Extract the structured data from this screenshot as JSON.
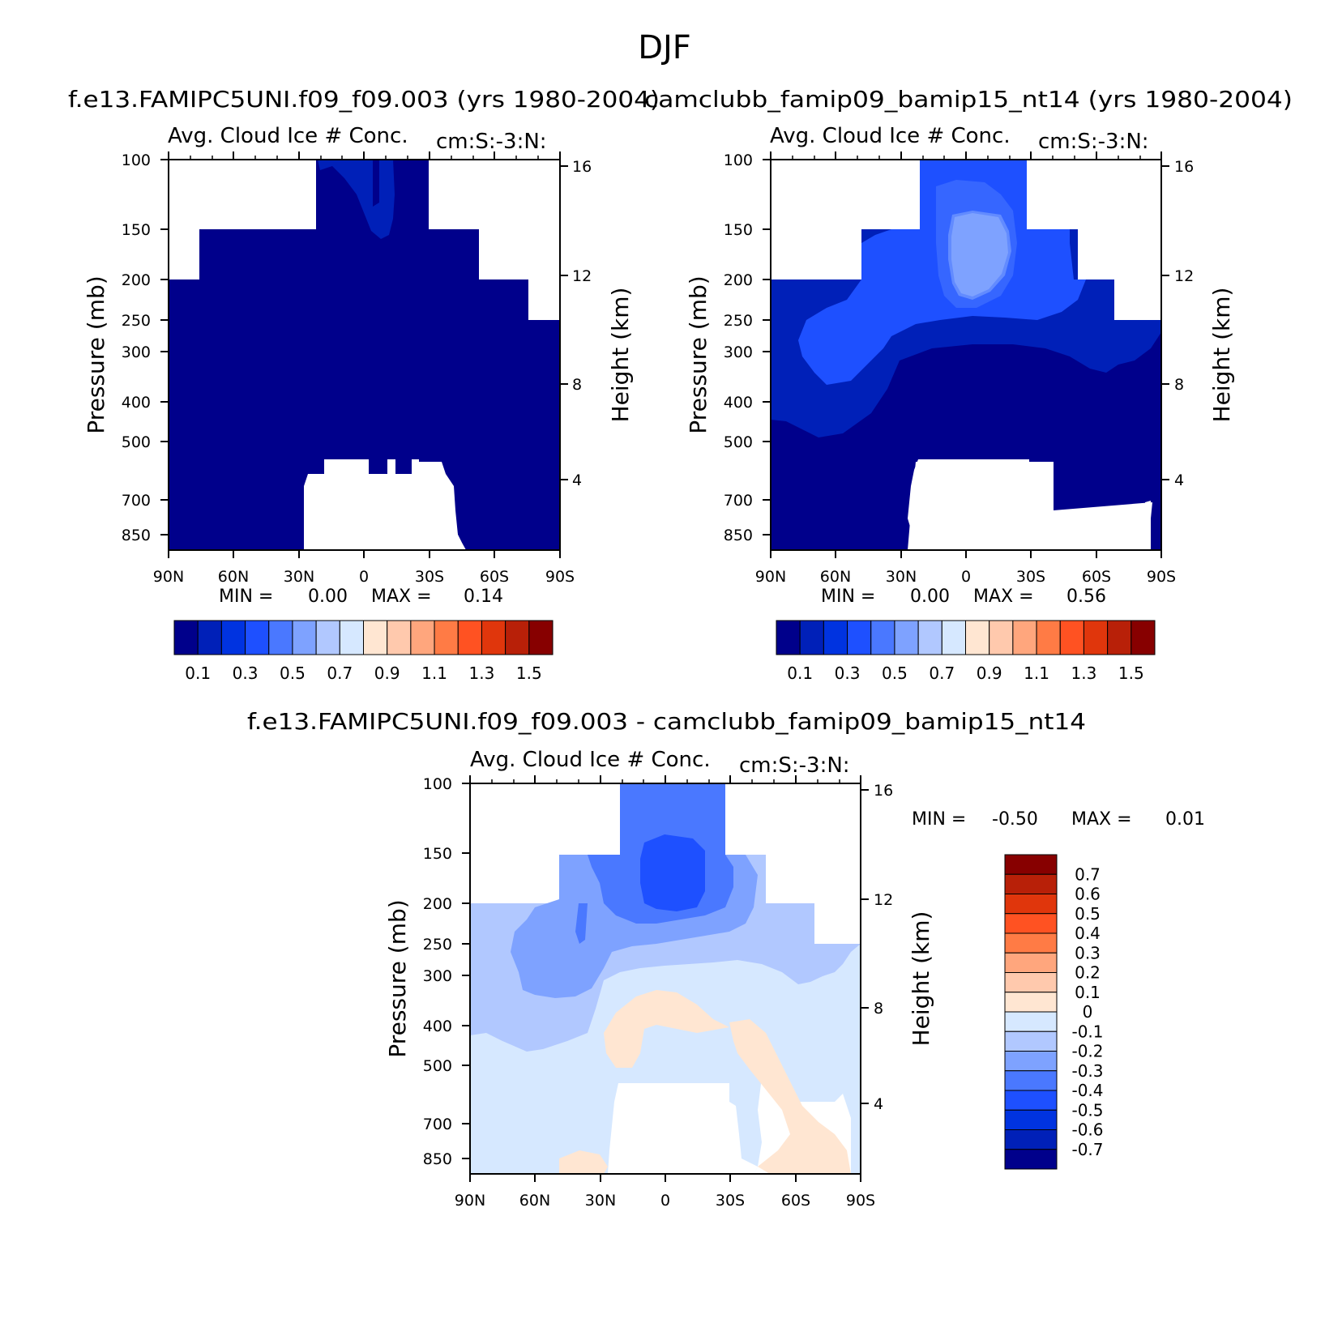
{
  "figure": {
    "title": "DJF"
  },
  "chart_data": [
    {
      "type": "heatmap",
      "panel": "top-left",
      "case_title": "f.e13.FAMIPC5UNI.f09_f09.003 (yrs 1980-2004)",
      "title": "Avg. Cloud Ice # Conc.",
      "units": "cm:S:-3:N:",
      "xlabel": "",
      "ylabel": "Pressure (mb)",
      "ylabel_right": "Height (km)",
      "x_ticks": [
        "90N",
        "60N",
        "30N",
        "0",
        "30S",
        "60S",
        "90S"
      ],
      "y_ticks": [
        "100",
        "150",
        "200",
        "250",
        "300",
        "400",
        "500",
        "700",
        "850"
      ],
      "y2_ticks": [
        "16",
        "12",
        "8",
        "4"
      ],
      "min_label": "MIN =",
      "min_value": "0.00",
      "max_label": "MAX =",
      "max_value": "0.14",
      "colorbar": {
        "orientation": "horizontal",
        "levels": [
          "0.1",
          "0.3",
          "0.5",
          "0.7",
          "0.9",
          "1.1",
          "1.3",
          "1.5"
        ],
        "colors": [
          "#00008b",
          "#0020b8",
          "#0033e0",
          "#1e50ff",
          "#4a78ff",
          "#7ea2ff",
          "#b1c8ff",
          "#d6e8ff",
          "#ffe6d2",
          "#ffc9ad",
          "#ffa67d",
          "#ff7b45",
          "#ff5222",
          "#e0360c",
          "#b82008",
          "#870000"
        ]
      },
      "fill_colors": {
        "base": "#00008b",
        "secondary": "#0020b8"
      }
    },
    {
      "type": "heatmap",
      "panel": "top-right",
      "case_title": "camclubb_famip09_bamip15_nt14 (yrs 1980-2004)",
      "title": "Avg. Cloud Ice # Conc.",
      "units": "cm:S:-3:N:",
      "ylabel": "Pressure (mb)",
      "ylabel_right": "Height (km)",
      "x_ticks": [
        "90N",
        "60N",
        "30N",
        "0",
        "30S",
        "60S",
        "90S"
      ],
      "y_ticks": [
        "100",
        "150",
        "200",
        "250",
        "300",
        "400",
        "500",
        "700",
        "850"
      ],
      "y2_ticks": [
        "16",
        "12",
        "8",
        "4"
      ],
      "min_label": "MIN =",
      "min_value": "0.00",
      "max_label": "MAX =",
      "max_value": "0.56",
      "colorbar": {
        "orientation": "horizontal",
        "levels": [
          "0.1",
          "0.3",
          "0.5",
          "0.7",
          "0.9",
          "1.1",
          "1.3",
          "1.5"
        ],
        "colors": [
          "#00008b",
          "#0020b8",
          "#0033e0",
          "#1e50ff",
          "#4a78ff",
          "#7ea2ff",
          "#b1c8ff",
          "#d6e8ff",
          "#ffe6d2",
          "#ffc9ad",
          "#ffa67d",
          "#ff7b45",
          "#ff5222",
          "#e0360c",
          "#b82008",
          "#870000"
        ]
      },
      "fill_colors": {
        "base": "#00008b",
        "l1": "#0020b8",
        "l2": "#1e50ff",
        "l3": "#7ea2ff"
      }
    },
    {
      "type": "heatmap",
      "panel": "bottom",
      "case_title": "f.e13.FAMIPC5UNI.f09_f09.003 - camclubb_famip09_bamip15_nt14",
      "title": "Avg. Cloud Ice # Conc.",
      "units": "cm:S:-3:N:",
      "ylabel": "Pressure (mb)",
      "ylabel_right": "Height (km)",
      "x_ticks": [
        "90N",
        "60N",
        "30N",
        "0",
        "30S",
        "60S",
        "90S"
      ],
      "y_ticks": [
        "100",
        "150",
        "200",
        "250",
        "300",
        "400",
        "500",
        "700",
        "850"
      ],
      "y2_ticks": [
        "16",
        "12",
        "8",
        "4"
      ],
      "min_label": "MIN =",
      "min_value": "-0.50",
      "max_label": "MAX =",
      "max_value": "0.01",
      "colorbar": {
        "orientation": "vertical",
        "levels": [
          "0.7",
          "0.6",
          "0.5",
          "0.4",
          "0.3",
          "0.2",
          "0.1",
          "0",
          "-0.1",
          "-0.2",
          "-0.3",
          "-0.4",
          "-0.5",
          "-0.6",
          "-0.7"
        ],
        "colors": [
          "#870000",
          "#b82008",
          "#e0360c",
          "#ff5222",
          "#ff7b45",
          "#ffa67d",
          "#ffc9ad",
          "#ffe6d2",
          "#d6e8ff",
          "#b1c8ff",
          "#7ea2ff",
          "#4a78ff",
          "#1e50ff",
          "#0033e0",
          "#0020b8",
          "#00008b"
        ]
      },
      "fill_colors": {
        "neg01": "#d6e8ff",
        "neg02": "#b1c8ff",
        "neg03": "#7ea2ff",
        "neg04": "#4a78ff",
        "neg05": "#1e50ff",
        "pos0": "#ffe6d2"
      }
    }
  ]
}
